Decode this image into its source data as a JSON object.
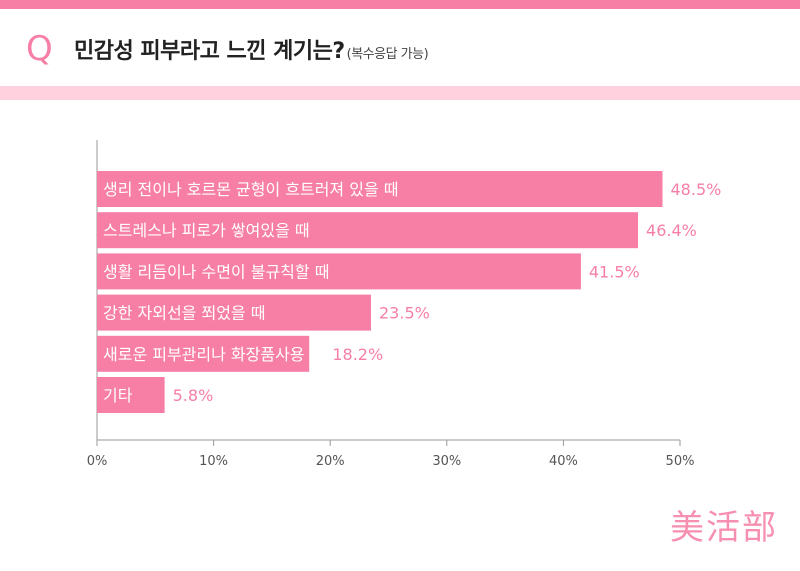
{
  "header": {
    "q_mark": "Q",
    "title": "민감성 피부라고 느낀 계기는?",
    "subtitle": "(복수응답 가능)"
  },
  "brand": "美活部",
  "colors": {
    "bar": "#f77fa6",
    "value_label": "#f77fa6",
    "band_top": "#f77fa6",
    "band_bottom": "#ffd0de"
  },
  "chart_data": {
    "type": "bar",
    "orientation": "horizontal",
    "categories": [
      "생리 전이나 호르몬 균형이 흐트러져 있을 때",
      "스트레스나 피로가 쌓여있을 때",
      "생활 리듬이나 수면이 불규칙할 때",
      "강한 자외선을  쬐었을 때",
      "새로운 피부관리나 화장품사용 시",
      "기타"
    ],
    "values": [
      48.5,
      46.4,
      41.5,
      23.5,
      18.2,
      5.8
    ],
    "value_labels": [
      "48.5%",
      "46.4%",
      "41.5%",
      "23.5%",
      "18.2%",
      "5.8%"
    ],
    "xlim": [
      0,
      50
    ],
    "xticks": [
      "0%",
      "10%",
      "20%",
      "30%",
      "40%",
      "50%"
    ],
    "xtick_values": [
      0,
      10,
      20,
      30,
      40,
      50
    ],
    "grid": false
  }
}
